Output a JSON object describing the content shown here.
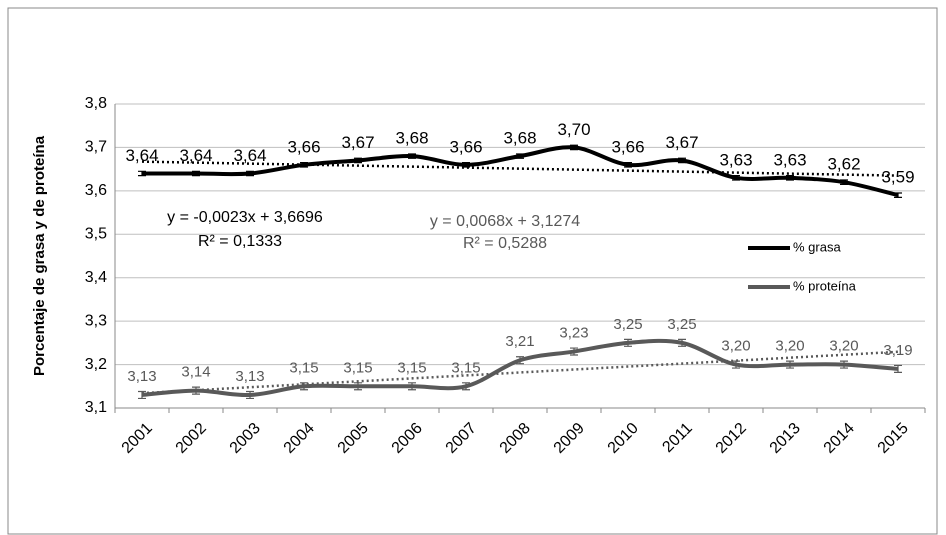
{
  "chart_data": {
    "type": "line",
    "y_label": "Porcentaje de grasa y de proteína",
    "categories": [
      "2001",
      "2002",
      "2003",
      "2004",
      "2005",
      "2006",
      "2007",
      "2008",
      "2009",
      "2010",
      "2011",
      "2012",
      "2013",
      "2014",
      "2015"
    ],
    "ylim": [
      3.1,
      3.8
    ],
    "yticks": [
      {
        "value": 3.1,
        "label": "3,1"
      },
      {
        "value": 3.2,
        "label": "3,2"
      },
      {
        "value": 3.3,
        "label": "3,3"
      },
      {
        "value": 3.4,
        "label": "3,4"
      },
      {
        "value": 3.5,
        "label": "3,5"
      },
      {
        "value": 3.6,
        "label": "3,6"
      },
      {
        "value": 3.7,
        "label": "3,7"
      },
      {
        "value": 3.8,
        "label": "3,8"
      }
    ],
    "grid": true,
    "legend": "right",
    "series": [
      {
        "name": "% grasa",
        "color": "#000000",
        "values": [
          3.64,
          3.64,
          3.64,
          3.66,
          3.67,
          3.68,
          3.66,
          3.68,
          3.7,
          3.66,
          3.67,
          3.63,
          3.63,
          3.62,
          3.59
        ],
        "value_labels": [
          "3,64",
          "3,64",
          "3,64",
          "3,66",
          "3,67",
          "3,68",
          "3,66",
          "3,68",
          "3,70",
          "3,66",
          "3,67",
          "3,63",
          "3,63",
          "3,62",
          "3,59"
        ],
        "errors": [
          0.005,
          0.005,
          0.005,
          0.005,
          0.005,
          0.005,
          0.005,
          0.005,
          0.005,
          0.005,
          0.005,
          0.005,
          0.005,
          0.005,
          0.005
        ],
        "trendline": {
          "slope": -0.0023,
          "intercept": 3.6696,
          "label": "y = -0,0023x + 3,6696",
          "r2_label": "R² = 0,1333"
        }
      },
      {
        "name": "% proteína",
        "color": "#595959",
        "values": [
          3.13,
          3.14,
          3.13,
          3.15,
          3.15,
          3.15,
          3.15,
          3.21,
          3.23,
          3.25,
          3.25,
          3.2,
          3.2,
          3.2,
          3.19
        ],
        "value_labels": [
          "3,13",
          "3,14",
          "3,13",
          "3,15",
          "3,15",
          "3,15",
          "3,15",
          "3,21",
          "3,23",
          "3,25",
          "3,25",
          "3,20",
          "3,20",
          "3,20",
          "3,19"
        ],
        "errors": [
          0.008,
          0.008,
          0.008,
          0.008,
          0.008,
          0.008,
          0.008,
          0.008,
          0.008,
          0.008,
          0.008,
          0.008,
          0.008,
          0.008,
          0.008
        ],
        "trendline": {
          "slope": 0.0068,
          "intercept": 3.1274,
          "label": "y = 0,0068x + 3,1274",
          "r2_label": "R² = 0,5288"
        }
      }
    ]
  }
}
